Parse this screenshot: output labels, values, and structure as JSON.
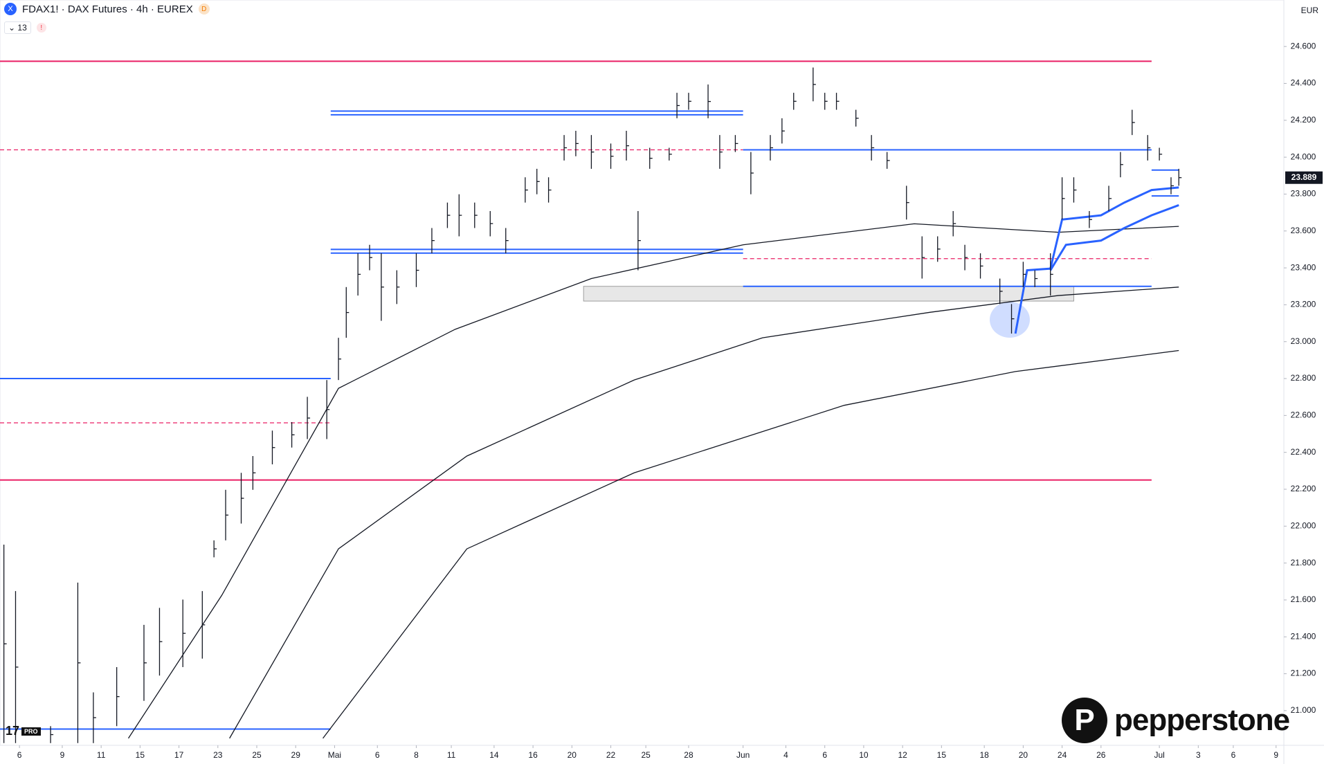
{
  "chart_data": {
    "type": "ohlc",
    "title": "FDAX1! · DAX Futures · 4h · EUREX",
    "interval_badge": "D",
    "indicator_count": "13",
    "currency": "EUR",
    "brand": "pepperstone",
    "platform_badge": "PRO",
    "xlim": [
      0,
      330
    ],
    "ylim": [
      20812,
      24852
    ],
    "x": [
      1,
      4,
      13,
      20,
      24,
      30,
      37,
      41,
      47,
      52,
      55,
      58,
      62,
      65,
      70,
      75,
      79,
      84,
      87,
      89,
      92,
      95,
      98,
      102,
      107,
      111,
      115,
      118,
      122,
      126,
      130,
      135,
      138,
      141,
      145,
      148,
      152,
      157,
      161,
      164,
      167,
      172,
      174,
      177,
      182,
      185,
      189,
      193,
      198,
      201,
      204,
      209,
      212,
      215,
      220,
      224,
      228,
      233,
      237,
      241,
      245,
      248,
      252,
      257,
      260,
      263,
      266,
      270,
      273,
      276,
      280,
      285,
      288,
      291,
      295,
      298,
      301,
      303
    ],
    "high": [
      21900,
      21648,
      20916,
      21694,
      21099,
      21236,
      21465,
      21557,
      21602,
      21648,
      21923,
      22197,
      22289,
      22380,
      22518,
      22564,
      22701,
      22792,
      23021,
      23296,
      23479,
      23525,
      23479,
      23387,
      23479,
      23616,
      23754,
      23799,
      23754,
      23708,
      23616,
      23891,
      23937,
      23891,
      24120,
      24143,
      24120,
      24074,
      24143,
      23708,
      24051,
      24051,
      24349,
      24349,
      24394,
      24120,
      24120,
      24028,
      24120,
      24211,
      24349,
      24486,
      24349,
      24349,
      24257,
      24120,
      24028,
      23845,
      23571,
      23571,
      23708,
      23525,
      23479,
      23342,
      23204,
      23433,
      23387,
      23479,
      23891,
      23891,
      23708,
      23845,
      24028,
      24257,
      24120,
      24051,
      23891,
      23937
    ],
    "low": [
      20824,
      20824,
      20824,
      20824,
      20824,
      20916,
      21053,
      21190,
      21236,
      21282,
      21831,
      21923,
      22014,
      22197,
      22335,
      22426,
      22472,
      22472,
      22792,
      23021,
      23250,
      23387,
      23113,
      23204,
      23296,
      23479,
      23616,
      23571,
      23616,
      23571,
      23479,
      23754,
      23799,
      23754,
      23982,
      24005,
      23937,
      23937,
      23982,
      23387,
      23937,
      23982,
      24211,
      24257,
      24211,
      23937,
      24028,
      23799,
      23982,
      24074,
      24257,
      24303,
      24257,
      24257,
      24166,
      23982,
      23937,
      23662,
      23342,
      23433,
      23571,
      23387,
      23342,
      23204,
      23044,
      23296,
      23296,
      23250,
      23662,
      23754,
      23616,
      23708,
      23891,
      24120,
      23982,
      23982,
      23799,
      23845
    ],
    "close": [
      21362,
      21236,
      20870,
      21259,
      20962,
      21076,
      21259,
      21374,
      21419,
      21465,
      21877,
      22060,
      22151,
      22289,
      22426,
      22495,
      22586,
      22632,
      22906,
      23158,
      23365,
      23456,
      23296,
      23296,
      23387,
      23548,
      23685,
      23685,
      23685,
      23640,
      23548,
      23822,
      23868,
      23822,
      24051,
      24074,
      24028,
      24005,
      24062,
      23548,
      23994,
      24016,
      24280,
      24303,
      24302,
      24028,
      24074,
      23914,
      24051,
      24142,
      24303,
      24394,
      24303,
      24303,
      24211,
      24051,
      23982,
      23754,
      23456,
      23502,
      23640,
      23456,
      23410,
      23273,
      23124,
      23365,
      23342,
      23365,
      23776,
      23822,
      23662,
      23776,
      23960,
      24188,
      24051,
      24016,
      23845,
      23889
    ],
    "last_price": {
      "value": 23889,
      "label": "23.889"
    },
    "moving_averages": [
      {
        "color": "#131722",
        "x": [
          33,
          57,
          87,
          117,
          152,
          191,
          235,
          272,
          303
        ],
        "values": [
          20850,
          21625,
          22747,
          23067,
          23342,
          23525,
          23639,
          23593,
          23625
        ]
      },
      {
        "color": "#131722",
        "x": [
          59,
          87,
          120,
          163,
          196,
          239,
          272,
          303
        ],
        "values": [
          20850,
          21877,
          22380,
          22792,
          23021,
          23159,
          23250,
          23296
        ]
      },
      {
        "color": "#131722",
        "x": [
          83,
          120,
          163,
          217,
          261,
          303
        ],
        "values": [
          20850,
          21877,
          22289,
          22655,
          22838,
          22952
        ]
      },
      {
        "color": "#2962ff",
        "x": [
          261,
          264,
          270,
          273,
          283,
          289,
          296,
          303
        ],
        "values": [
          23044,
          23387,
          23396,
          23662,
          23685,
          23754,
          23822,
          23836
        ]
      },
      {
        "color": "#2962ff",
        "x": [
          270,
          274,
          283,
          289,
          296,
          303
        ],
        "values": [
          23387,
          23525,
          23548,
          23616,
          23685,
          23740
        ]
      }
    ],
    "levels": [
      {
        "price": 24520,
        "x": [
          0,
          296
        ],
        "color": "#e91e63",
        "dashed": false
      },
      {
        "price": 22250,
        "x": [
          0,
          296
        ],
        "color": "#e91e63",
        "dashed": false
      },
      {
        "price": 24040,
        "x": [
          0,
          191
        ],
        "color": "#e91e63",
        "dashed": true
      },
      {
        "price": 22560,
        "x": [
          0,
          85
        ],
        "color": "#e91e63",
        "dashed": true
      },
      {
        "price": 23450,
        "x": [
          191,
          296
        ],
        "color": "#e91e63",
        "dashed": true
      },
      {
        "price": 24250,
        "x": [
          85,
          191
        ],
        "color": "#2962ff",
        "dashed": false
      },
      {
        "price": 24230,
        "x": [
          85,
          191
        ],
        "color": "#2962ff",
        "dashed": false
      },
      {
        "price": 23500,
        "x": [
          85,
          191
        ],
        "color": "#2962ff",
        "dashed": false
      },
      {
        "price": 23480,
        "x": [
          85,
          191
        ],
        "color": "#2962ff",
        "dashed": false
      },
      {
        "price": 24040,
        "x": [
          191,
          296
        ],
        "color": "#2962ff",
        "dashed": false
      },
      {
        "price": 23300,
        "x": [
          191,
          296
        ],
        "color": "#2962ff",
        "dashed": false
      },
      {
        "price": 22800,
        "x": [
          0,
          85
        ],
        "color": "#2962ff",
        "dashed": false
      },
      {
        "price": 20900,
        "x": [
          0,
          85
        ],
        "color": "#2962ff",
        "dashed": false
      },
      {
        "price": 23930,
        "x": [
          296,
          303
        ],
        "color": "#2962ff",
        "dashed": false
      },
      {
        "price": 23790,
        "x": [
          296,
          303
        ],
        "color": "#2962ff",
        "dashed": false
      }
    ],
    "zone": {
      "low": 23220,
      "high": 23300,
      "x": [
        150,
        276
      ]
    },
    "yticks": [
      {
        "value": 21000,
        "label": "21.000"
      },
      {
        "value": 21200,
        "label": "21.200"
      },
      {
        "value": 21400,
        "label": "21.400"
      },
      {
        "value": 21600,
        "label": "21.600"
      },
      {
        "value": 21800,
        "label": "21.800"
      },
      {
        "value": 22000,
        "label": "22.000"
      },
      {
        "value": 22200,
        "label": "22.200"
      },
      {
        "value": 22400,
        "label": "22.400"
      },
      {
        "value": 22600,
        "label": "22.600"
      },
      {
        "value": 22800,
        "label": "22.800"
      },
      {
        "value": 23000,
        "label": "23.000"
      },
      {
        "value": 23200,
        "label": "23.200"
      },
      {
        "value": 23400,
        "label": "23.400"
      },
      {
        "value": 23600,
        "label": "23.600"
      },
      {
        "value": 23800,
        "label": "23.800"
      },
      {
        "value": 24000,
        "label": "24.000"
      },
      {
        "value": 24200,
        "label": "24.200"
      },
      {
        "value": 24400,
        "label": "24.400"
      },
      {
        "value": 24600,
        "label": "24.600"
      }
    ],
    "xticks": [
      {
        "value": 5,
        "label": "6"
      },
      {
        "value": 16,
        "label": "9"
      },
      {
        "value": 26,
        "label": "11"
      },
      {
        "value": 36,
        "label": "15"
      },
      {
        "value": 46,
        "label": "17"
      },
      {
        "value": 56,
        "label": "23"
      },
      {
        "value": 66,
        "label": "25"
      },
      {
        "value": 76,
        "label": "29"
      },
      {
        "value": 86,
        "label": "Mai"
      },
      {
        "value": 97,
        "label": "6"
      },
      {
        "value": 107,
        "label": "8"
      },
      {
        "value": 116,
        "label": "11"
      },
      {
        "value": 127,
        "label": "14"
      },
      {
        "value": 137,
        "label": "16"
      },
      {
        "value": 147,
        "label": "20"
      },
      {
        "value": 157,
        "label": "22"
      },
      {
        "value": 166,
        "label": "25"
      },
      {
        "value": 177,
        "label": "28"
      },
      {
        "value": 191,
        "label": "Jun"
      },
      {
        "value": 202,
        "label": "4"
      },
      {
        "value": 212,
        "label": "6"
      },
      {
        "value": 222,
        "label": "10"
      },
      {
        "value": 232,
        "label": "12"
      },
      {
        "value": 242,
        "label": "15"
      },
      {
        "value": 253,
        "label": "18"
      },
      {
        "value": 263,
        "label": "20"
      },
      {
        "value": 273,
        "label": "24"
      },
      {
        "value": 283,
        "label": "26"
      },
      {
        "value": 298,
        "label": "Jul"
      },
      {
        "value": 308,
        "label": "3"
      },
      {
        "value": 317,
        "label": "6"
      },
      {
        "value": 328,
        "label": "9"
      }
    ]
  }
}
